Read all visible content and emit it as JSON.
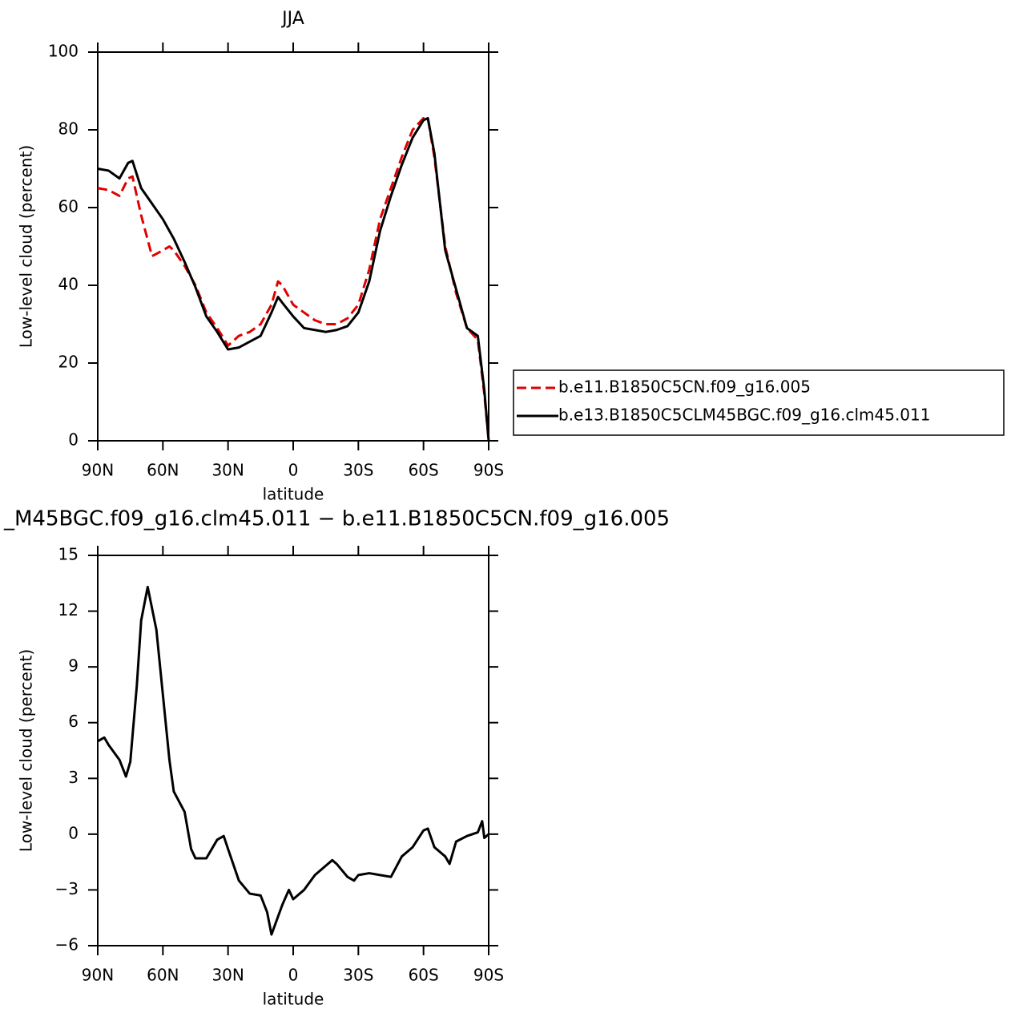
{
  "chart_data": [
    {
      "type": "line",
      "title": "JJA",
      "xlabel": "latitude",
      "ylabel": "Low-level cloud (percent)",
      "x": [
        90,
        85,
        80,
        76,
        74,
        70,
        65,
        60,
        57,
        55,
        50,
        45,
        40,
        35,
        30,
        25,
        20,
        15,
        10,
        7,
        5,
        0,
        -5,
        -10,
        -15,
        -20,
        -25,
        -30,
        -35,
        -40,
        -45,
        -50,
        -55,
        -60,
        -62,
        -65,
        -70,
        -75,
        -80,
        -85,
        -88,
        -90
      ],
      "series": [
        {
          "name": "b.e11.B1850C5CN.f09_g16.005",
          "color": "#e00000",
          "line_style": "dashed",
          "values": [
            65,
            64.5,
            63,
            67.5,
            68,
            58,
            47.5,
            49,
            50,
            49,
            45,
            40,
            33,
            29,
            24.5,
            27,
            28,
            30,
            35,
            41,
            40,
            35,
            33,
            31,
            30,
            30,
            31.5,
            35,
            44,
            57,
            65,
            73,
            80,
            83,
            83,
            73,
            50,
            38,
            29,
            26,
            12,
            0
          ]
        },
        {
          "name": "b.e13.B1850C5CLM45BGC.f09_g16.clm45.011",
          "color": "#000000",
          "line_style": "solid",
          "values": [
            70,
            69.5,
            67.5,
            71.5,
            72,
            65,
            61,
            57,
            54,
            52,
            46,
            39.5,
            32,
            28,
            23.5,
            24,
            25.5,
            27,
            33,
            37,
            35.5,
            32,
            29,
            28.5,
            28,
            28.5,
            29.5,
            33,
            41,
            54,
            63,
            71,
            78,
            82.5,
            83,
            74,
            49,
            39,
            29,
            27,
            13,
            0
          ]
        }
      ],
      "xlim": [
        90,
        -90
      ],
      "xticks": [
        {
          "value": 90,
          "label": "90N"
        },
        {
          "value": 60,
          "label": "60N"
        },
        {
          "value": 30,
          "label": "30N"
        },
        0,
        {
          "value": -30,
          "label": "30S"
        },
        {
          "value": -60,
          "label": "60S"
        },
        {
          "value": -90,
          "label": "90S"
        }
      ],
      "ylim": [
        0,
        100
      ],
      "yticks": [
        0,
        20,
        40,
        60,
        80,
        100
      ],
      "legend": "right"
    },
    {
      "type": "line",
      "title": "_M45BGC.f09_g16.clm45.011 − b.e11.B1850C5CN.f09_g16.005",
      "xlabel": "latitude",
      "ylabel": "Low-level cloud (percent)",
      "x": [
        90,
        87,
        85,
        80,
        77,
        75,
        72,
        70,
        67,
        63,
        60,
        57,
        55,
        50,
        47,
        45,
        40,
        35,
        32,
        30,
        25,
        20,
        15,
        12,
        10,
        5,
        2,
        0,
        -5,
        -10,
        -15,
        -18,
        -20,
        -25,
        -28,
        -30,
        -35,
        -40,
        -45,
        -50,
        -55,
        -60,
        -62,
        -65,
        -70,
        -72,
        -75,
        -80,
        -85,
        -87,
        -88,
        -90
      ],
      "series": [
        {
          "color": "#000000",
          "line_style": "solid",
          "values": [
            5,
            5.2,
            4.8,
            4,
            3.1,
            3.9,
            8,
            11.5,
            13.3,
            11,
            7.5,
            4,
            2.3,
            1.2,
            -0.8,
            -1.3,
            -1.3,
            -0.3,
            -0.1,
            -0.8,
            -2.5,
            -3.2,
            -3.3,
            -4.2,
            -5.4,
            -3.8,
            -3.0,
            -3.5,
            -3,
            -2.2,
            -1.7,
            -1.4,
            -1.6,
            -2.3,
            -2.5,
            -2.2,
            -2.1,
            -2.2,
            -2.3,
            -1.2,
            -0.7,
            0.2,
            0.3,
            -0.7,
            -1.2,
            -1.6,
            -0.4,
            -0.1,
            0.1,
            0.7,
            -0.2,
            0
          ]
        }
      ],
      "xlim": [
        90,
        -90
      ],
      "xticks": [
        {
          "value": 90,
          "label": "90N"
        },
        {
          "value": 60,
          "label": "60N"
        },
        {
          "value": 30,
          "label": "30N"
        },
        0,
        {
          "value": -30,
          "label": "30S"
        },
        {
          "value": -60,
          "label": "60S"
        },
        {
          "value": -90,
          "label": "90S"
        }
      ],
      "ylim": [
        -6,
        15
      ],
      "yticks": [
        {
          "value": -6,
          "label": "−6"
        },
        {
          "value": -3,
          "label": "−3"
        },
        0,
        3,
        6,
        9,
        12,
        15
      ]
    }
  ]
}
